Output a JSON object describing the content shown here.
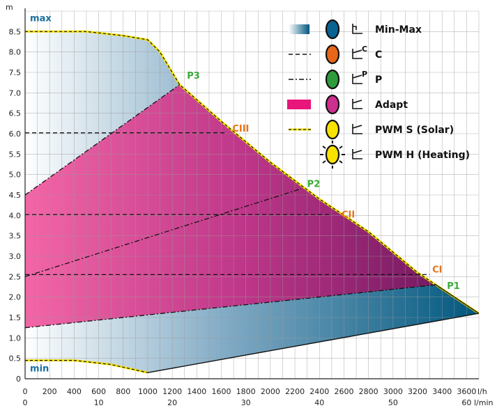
{
  "chart_data": {
    "type": "area",
    "title": "",
    "y_unit": "m",
    "x_unit_top": "l/h",
    "x_unit_bottom": "l/min",
    "ylim": [
      0,
      9
    ],
    "xlim": [
      0,
      3700
    ],
    "y_ticks": [
      0,
      0.5,
      1.0,
      1.5,
      2.0,
      2.5,
      3.0,
      3.5,
      4.0,
      4.5,
      5.0,
      5.5,
      6.0,
      6.5,
      7.0,
      7.5,
      8.0,
      8.5
    ],
    "y_tick_labels": [
      "0",
      "0.5",
      "1.0",
      "1.5",
      "2.0",
      "2.5",
      "3.0",
      "3.5",
      "4.0",
      "4.5",
      "5.0",
      "5.5",
      "6.0",
      "6.5",
      "7.0",
      "7.5",
      "8.0",
      "8.5"
    ],
    "x_ticks_top": [
      0,
      200,
      400,
      600,
      800,
      1000,
      1200,
      1400,
      1600,
      1800,
      2000,
      2200,
      2400,
      2600,
      2800,
      3000,
      3200,
      3400,
      3600
    ],
    "x_ticks_bottom": [
      {
        "x": 0,
        "label": "0"
      },
      {
        "x": 600,
        "label": "10"
      },
      {
        "x": 1200,
        "label": "20"
      },
      {
        "x": 1800,
        "label": "30"
      },
      {
        "x": 2400,
        "label": "40"
      },
      {
        "x": 3000,
        "label": "50"
      },
      {
        "x": 3600,
        "label": "60"
      }
    ],
    "grid": true,
    "max_curve": [
      [
        0,
        8.5
      ],
      [
        500,
        8.5
      ],
      [
        800,
        8.4
      ],
      [
        1000,
        8.3
      ],
      [
        1100,
        8.0
      ],
      [
        1260,
        7.2
      ],
      [
        1600,
        6.3
      ],
      [
        2000,
        5.3
      ],
      [
        2400,
        4.4
      ],
      [
        2800,
        3.6
      ],
      [
        3200,
        2.6
      ],
      [
        3500,
        2.0
      ],
      [
        3700,
        1.6
      ]
    ],
    "min_curve": [
      [
        0,
        0.45
      ],
      [
        400,
        0.45
      ],
      [
        700,
        0.35
      ],
      [
        1000,
        0.15
      ],
      [
        3700,
        1.6
      ]
    ],
    "adapt_lower": [
      [
        0,
        1.25
      ],
      [
        3350,
        2.3
      ]
    ],
    "p_lines": [
      [
        [
          0,
          4.5
        ],
        [
          1260,
          7.2
        ]
      ],
      [
        [
          0,
          2.5
        ],
        [
          2250,
          4.65
        ]
      ],
      [
        [
          0,
          1.25
        ],
        [
          3350,
          2.3
        ]
      ]
    ],
    "c_lines": [
      {
        "y": 6.02,
        "x_end": 1640
      },
      {
        "y": 4.02,
        "x_end": 2500
      },
      {
        "y": 2.55,
        "x_end": 3300
      }
    ],
    "annotations": [
      {
        "text": "max",
        "x": 40,
        "y": 8.75,
        "color": "#1a6fa0"
      },
      {
        "text": "min",
        "x": 40,
        "y": 0.18,
        "color": "#1a6fa0"
      },
      {
        "text": "P3",
        "x": 1320,
        "y": 7.35,
        "color": "#3aaa35"
      },
      {
        "text": "CIII",
        "x": 1690,
        "y": 6.05,
        "color": "#e8731a"
      },
      {
        "text": "P2",
        "x": 2300,
        "y": 4.7,
        "color": "#3aaa35"
      },
      {
        "text": "CII",
        "x": 2580,
        "y": 3.95,
        "color": "#e8731a"
      },
      {
        "text": "CI",
        "x": 3320,
        "y": 2.6,
        "color": "#e8731a"
      },
      {
        "text": "P1",
        "x": 3440,
        "y": 2.2,
        "color": "#3aaa35"
      }
    ],
    "legend": [
      {
        "label": "Min-Max",
        "marker": "gradient",
        "lamp": "#0a6390",
        "icon": "corner-icon"
      },
      {
        "label": "C",
        "marker": "dashed",
        "lamp": "#e8661a",
        "icon": "c-curve-icon",
        "sup": "C"
      },
      {
        "label": "P",
        "marker": "dashdot",
        "lamp": "#2e9c3a",
        "icon": "p-curve-icon",
        "sup": "P"
      },
      {
        "label": "Adapt",
        "marker": "magenta",
        "lamp": "#cc2f8e",
        "icon": "adapt-icon"
      },
      {
        "label": "PWM S (Solar)",
        "marker": "yellow-dashed",
        "lamp": "#f8e200",
        "icon": "pwm-icon"
      },
      {
        "label": "PWM H (Heating)",
        "marker": "none",
        "lamp": "#f8e200",
        "icon": "pwm-icon",
        "rays": true
      }
    ],
    "legend_placement": "top-right",
    "colors": {
      "minmax_dark": "#00577e",
      "minmax_light": "#ffffff",
      "adapt_left": "#f25ea2",
      "adapt_right": "#8c1a6a",
      "pwm_yellow": "#f5e400",
      "p_label": "#3aaa35",
      "c_label": "#e8731a",
      "max_min_label": "#1a6fa0"
    }
  }
}
